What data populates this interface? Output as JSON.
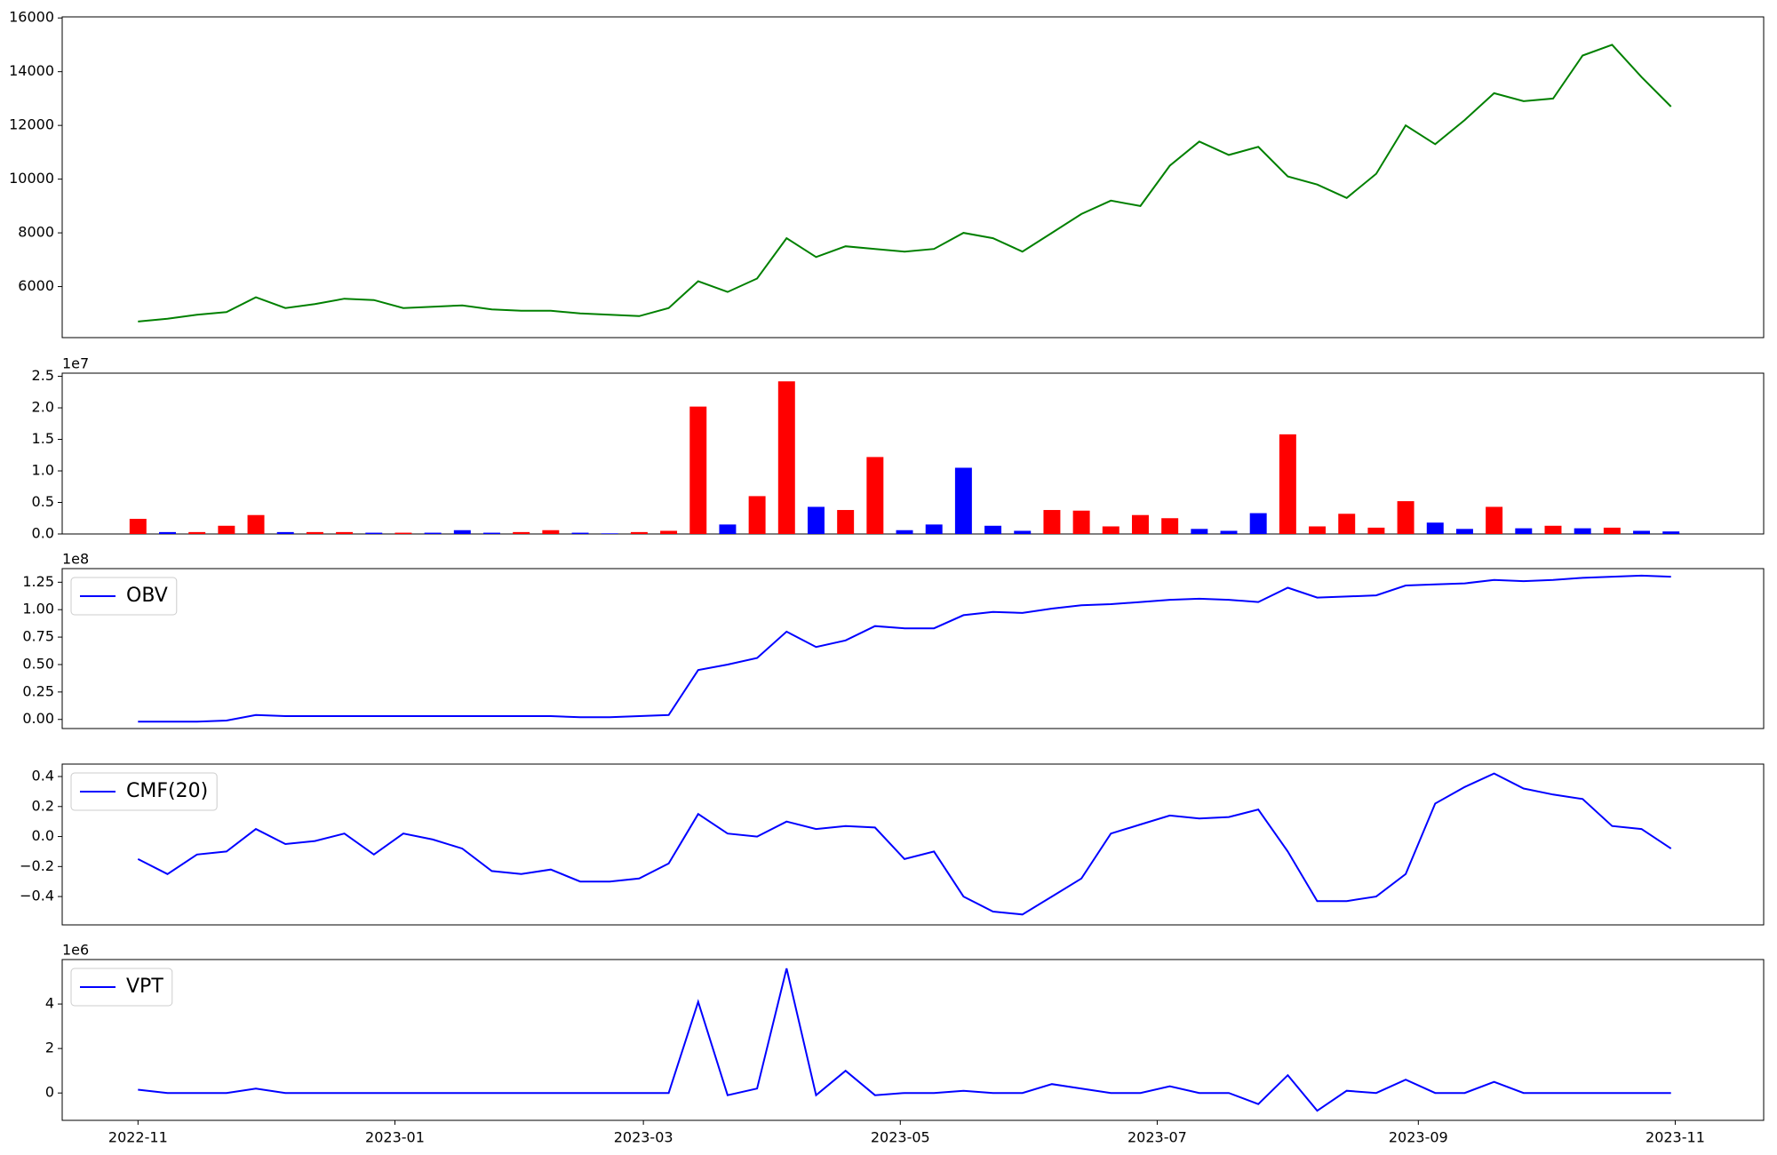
{
  "chart_data": [
    {
      "type": "line",
      "color": "green",
      "x": [
        "2022-11-01",
        "2022-11-08",
        "2022-11-15",
        "2022-11-22",
        "2022-11-29",
        "2022-12-06",
        "2022-12-13",
        "2022-12-20",
        "2022-12-27",
        "2023-01-03",
        "2023-01-10",
        "2023-01-17",
        "2023-01-24",
        "2023-01-31",
        "2023-02-07",
        "2023-02-14",
        "2023-02-21",
        "2023-02-28",
        "2023-03-07",
        "2023-03-14",
        "2023-03-21",
        "2023-03-28",
        "2023-04-04",
        "2023-04-11",
        "2023-04-18",
        "2023-04-25",
        "2023-05-02",
        "2023-05-09",
        "2023-05-16",
        "2023-05-23",
        "2023-05-30",
        "2023-06-06",
        "2023-06-13",
        "2023-06-20",
        "2023-06-27",
        "2023-07-04",
        "2023-07-11",
        "2023-07-18",
        "2023-07-25",
        "2023-08-01",
        "2023-08-08",
        "2023-08-15",
        "2023-08-22",
        "2023-08-29",
        "2023-09-05",
        "2023-09-12",
        "2023-09-19",
        "2023-09-26",
        "2023-10-03",
        "2023-10-10",
        "2023-10-17",
        "2023-10-24",
        "2023-10-31"
      ],
      "values": [
        4700,
        4800,
        4950,
        5050,
        5600,
        5200,
        5350,
        5550,
        5500,
        5200,
        5250,
        5300,
        5150,
        5100,
        5100,
        5000,
        4950,
        4900,
        5200,
        6200,
        5800,
        6300,
        7800,
        7100,
        7500,
        7400,
        7300,
        7400,
        8000,
        7800,
        7300,
        8000,
        8700,
        9200,
        9000,
        10500,
        11400,
        10900,
        11200,
        10100,
        9800,
        9300,
        10200,
        12000,
        11300,
        12200,
        13200,
        12900,
        13000,
        14600,
        15000,
        13800,
        12700
      ],
      "xlim": [
        "2022-10-14",
        "2023-11-22"
      ],
      "ylim": [
        4100,
        16040
      ],
      "yticks": [
        6000,
        8000,
        10000,
        12000,
        14000,
        16000
      ]
    },
    {
      "type": "bar",
      "offset_label": "1e7",
      "x": [
        "2022-11-01",
        "2022-11-08",
        "2022-11-15",
        "2022-11-22",
        "2022-11-29",
        "2022-12-06",
        "2022-12-13",
        "2022-12-20",
        "2022-12-27",
        "2023-01-03",
        "2023-01-10",
        "2023-01-17",
        "2023-01-24",
        "2023-01-31",
        "2023-02-07",
        "2023-02-14",
        "2023-02-21",
        "2023-02-28",
        "2023-03-07",
        "2023-03-14",
        "2023-03-21",
        "2023-03-28",
        "2023-04-04",
        "2023-04-11",
        "2023-04-18",
        "2023-04-25",
        "2023-05-02",
        "2023-05-09",
        "2023-05-16",
        "2023-05-23",
        "2023-05-30",
        "2023-06-06",
        "2023-06-13",
        "2023-06-20",
        "2023-06-27",
        "2023-07-04",
        "2023-07-11",
        "2023-07-18",
        "2023-07-25",
        "2023-08-01",
        "2023-08-08",
        "2023-08-15",
        "2023-08-22",
        "2023-08-29",
        "2023-09-05",
        "2023-09-12",
        "2023-09-19",
        "2023-09-26",
        "2023-10-03",
        "2023-10-10",
        "2023-10-17",
        "2023-10-24",
        "2023-10-31"
      ],
      "values": [
        2400000,
        300000,
        300000,
        1300000,
        3000000,
        300000,
        300000,
        300000,
        200000,
        200000,
        200000,
        600000,
        200000,
        300000,
        600000,
        200000,
        100000,
        300000,
        500000,
        20200000,
        1500000,
        6000000,
        24200000,
        4300000,
        3800000,
        12200000,
        600000,
        1500000,
        10500000,
        1300000,
        500000,
        3800000,
        3700000,
        1200000,
        3000000,
        2500000,
        800000,
        500000,
        3300000,
        15800000,
        1200000,
        3200000,
        1000000,
        5200000,
        1800000,
        800000,
        4300000,
        900000,
        1300000,
        900000,
        1000000,
        500000,
        400000
      ],
      "colors": [
        "red",
        "blue",
        "red",
        "red",
        "red",
        "blue",
        "red",
        "red",
        "blue",
        "red",
        "blue",
        "blue",
        "blue",
        "red",
        "red",
        "blue",
        "blue",
        "red",
        "red",
        "red",
        "blue",
        "red",
        "red",
        "blue",
        "red",
        "red",
        "blue",
        "blue",
        "blue",
        "blue",
        "blue",
        "red",
        "red",
        "red",
        "red",
        "red",
        "blue",
        "blue",
        "blue",
        "red",
        "red",
        "red",
        "red",
        "red",
        "blue",
        "blue",
        "red",
        "blue",
        "red",
        "blue",
        "red",
        "blue",
        "blue"
      ],
      "xlim": [
        "2022-10-14",
        "2023-11-22"
      ],
      "ylim": [
        0,
        25500000
      ],
      "yticks": [
        {
          "value": 0,
          "label": "0.0"
        },
        {
          "value": 5000000,
          "label": "0.5"
        },
        {
          "value": 10000000,
          "label": "1.0"
        },
        {
          "value": 15000000,
          "label": "1.5"
        },
        {
          "value": 20000000,
          "label": "2.0"
        },
        {
          "value": 25000000,
          "label": "2.5"
        }
      ]
    },
    {
      "type": "line",
      "offset_label": "1e8",
      "legend": "upper left",
      "x": [
        "2022-11-01",
        "2022-11-08",
        "2022-11-15",
        "2022-11-22",
        "2022-11-29",
        "2022-12-06",
        "2022-12-13",
        "2022-12-20",
        "2022-12-27",
        "2023-01-03",
        "2023-01-10",
        "2023-01-17",
        "2023-01-24",
        "2023-01-31",
        "2023-02-07",
        "2023-02-14",
        "2023-02-21",
        "2023-02-28",
        "2023-03-07",
        "2023-03-14",
        "2023-03-21",
        "2023-03-28",
        "2023-04-04",
        "2023-04-11",
        "2023-04-18",
        "2023-04-25",
        "2023-05-02",
        "2023-05-09",
        "2023-05-16",
        "2023-05-23",
        "2023-05-30",
        "2023-06-06",
        "2023-06-13",
        "2023-06-20",
        "2023-06-27",
        "2023-07-04",
        "2023-07-11",
        "2023-07-18",
        "2023-07-25",
        "2023-08-01",
        "2023-08-08",
        "2023-08-15",
        "2023-08-22",
        "2023-08-29",
        "2023-09-05",
        "2023-09-12",
        "2023-09-19",
        "2023-09-26",
        "2023-10-03",
        "2023-10-10",
        "2023-10-17",
        "2023-10-24",
        "2023-10-31"
      ],
      "series": [
        {
          "name": "OBV",
          "color": "blue",
          "values": [
            -2000000,
            -2000000,
            -2000000,
            -1000000,
            4000000,
            3000000,
            3000000,
            3000000,
            3000000,
            3000000,
            3000000,
            3000000,
            3000000,
            3000000,
            3000000,
            2000000,
            2000000,
            3000000,
            4000000,
            45000000,
            50000000,
            56000000,
            80000000,
            66000000,
            72000000,
            85000000,
            83000000,
            83000000,
            95000000,
            98000000,
            97000000,
            101000000,
            104000000,
            105000000,
            107000000,
            109000000,
            110000000,
            109000000,
            107000000,
            120000000,
            111000000,
            112000000,
            113000000,
            122000000,
            123000000,
            124000000,
            127000000,
            126000000,
            127000000,
            129000000,
            130000000,
            131000000,
            130000000
          ]
        }
      ],
      "xlim": [
        "2022-10-14",
        "2023-11-22"
      ],
      "ylim": [
        -8300000,
        137400000
      ],
      "yticks": [
        {
          "value": 0,
          "label": "0.00"
        },
        {
          "value": 25000000,
          "label": "0.25"
        },
        {
          "value": 50000000,
          "label": "0.50"
        },
        {
          "value": 75000000,
          "label": "0.75"
        },
        {
          "value": 100000000,
          "label": "1.00"
        },
        {
          "value": 125000000,
          "label": "1.25"
        }
      ]
    },
    {
      "type": "line",
      "legend": "upper left",
      "x": [
        "2022-11-01",
        "2022-11-08",
        "2022-11-15",
        "2022-11-22",
        "2022-11-29",
        "2022-12-06",
        "2022-12-13",
        "2022-12-20",
        "2022-12-27",
        "2023-01-03",
        "2023-01-10",
        "2023-01-17",
        "2023-01-24",
        "2023-01-31",
        "2023-02-07",
        "2023-02-14",
        "2023-02-21",
        "2023-02-28",
        "2023-03-07",
        "2023-03-14",
        "2023-03-21",
        "2023-03-28",
        "2023-04-04",
        "2023-04-11",
        "2023-04-18",
        "2023-04-25",
        "2023-05-02",
        "2023-05-09",
        "2023-05-16",
        "2023-05-23",
        "2023-05-30",
        "2023-06-06",
        "2023-06-13",
        "2023-06-20",
        "2023-06-27",
        "2023-07-04",
        "2023-07-11",
        "2023-07-18",
        "2023-07-25",
        "2023-08-01",
        "2023-08-08",
        "2023-08-15",
        "2023-08-22",
        "2023-08-29",
        "2023-09-05",
        "2023-09-12",
        "2023-09-19",
        "2023-09-26",
        "2023-10-03",
        "2023-10-10",
        "2023-10-17",
        "2023-10-24",
        "2023-10-31"
      ],
      "series": [
        {
          "name": "CMF(20)",
          "color": "blue",
          "values": [
            -0.15,
            -0.25,
            -0.12,
            -0.1,
            0.05,
            -0.05,
            -0.03,
            0.02,
            -0.12,
            0.02,
            -0.02,
            -0.08,
            -0.23,
            -0.25,
            -0.22,
            -0.3,
            -0.3,
            -0.28,
            -0.18,
            0.15,
            0.02,
            0.0,
            0.1,
            0.05,
            0.07,
            0.06,
            -0.15,
            -0.1,
            -0.4,
            -0.5,
            -0.52,
            -0.4,
            -0.28,
            0.02,
            0.08,
            0.14,
            0.12,
            0.13,
            0.18,
            -0.1,
            -0.43,
            -0.43,
            -0.4,
            -0.25,
            0.22,
            0.33,
            0.42,
            0.32,
            0.28,
            0.25,
            0.07,
            0.05,
            -0.08
          ]
        }
      ],
      "xlim": [
        "2022-10-14",
        "2023-11-22"
      ],
      "ylim": [
        -0.589,
        0.483
      ],
      "yticks": [
        {
          "value": -0.4,
          "label": "−0.4"
        },
        {
          "value": -0.2,
          "label": "−0.2"
        },
        {
          "value": 0,
          "label": "0.0"
        },
        0.2,
        0.4
      ]
    },
    {
      "type": "line",
      "offset_label": "1e6",
      "legend": "upper left",
      "x": [
        "2022-11-01",
        "2022-11-08",
        "2022-11-15",
        "2022-11-22",
        "2022-11-29",
        "2022-12-06",
        "2022-12-13",
        "2022-12-20",
        "2022-12-27",
        "2023-01-03",
        "2023-01-10",
        "2023-01-17",
        "2023-01-24",
        "2023-01-31",
        "2023-02-07",
        "2023-02-14",
        "2023-02-21",
        "2023-02-28",
        "2023-03-07",
        "2023-03-14",
        "2023-03-21",
        "2023-03-28",
        "2023-04-04",
        "2023-04-11",
        "2023-04-18",
        "2023-04-25",
        "2023-05-02",
        "2023-05-09",
        "2023-05-16",
        "2023-05-23",
        "2023-05-30",
        "2023-06-06",
        "2023-06-13",
        "2023-06-20",
        "2023-06-27",
        "2023-07-04",
        "2023-07-11",
        "2023-07-18",
        "2023-07-25",
        "2023-08-01",
        "2023-08-08",
        "2023-08-15",
        "2023-08-22",
        "2023-08-29",
        "2023-09-05",
        "2023-09-12",
        "2023-09-19",
        "2023-09-26",
        "2023-10-03",
        "2023-10-10",
        "2023-10-17",
        "2023-10-24",
        "2023-10-31"
      ],
      "series": [
        {
          "name": "VPT",
          "color": "blue",
          "values": [
            150000,
            0,
            0,
            0,
            200000,
            0,
            0,
            0,
            0,
            0,
            0,
            0,
            0,
            0,
            0,
            0,
            0,
            0,
            0,
            4100000,
            -100000,
            200000,
            5600000,
            -100000,
            1000000,
            -100000,
            0,
            0,
            100000,
            0,
            0,
            400000,
            200000,
            0,
            0,
            300000,
            0,
            0,
            -500000,
            800000,
            -800000,
            100000,
            0,
            600000,
            0,
            0,
            500000,
            0,
            0,
            0,
            0,
            0,
            0
          ]
        }
      ],
      "xlim": [
        "2022-10-14",
        "2023-11-22"
      ],
      "ylim": [
        -1230000,
        6000000
      ],
      "yticks": [
        {
          "value": 0,
          "label": "0"
        },
        {
          "value": 2000000,
          "label": "2"
        },
        {
          "value": 4000000,
          "label": "4"
        }
      ],
      "xticks": [
        "2022-11",
        "2023-01",
        "2023-03",
        "2023-05",
        "2023-07",
        "2023-09",
        "2023-11"
      ]
    }
  ]
}
